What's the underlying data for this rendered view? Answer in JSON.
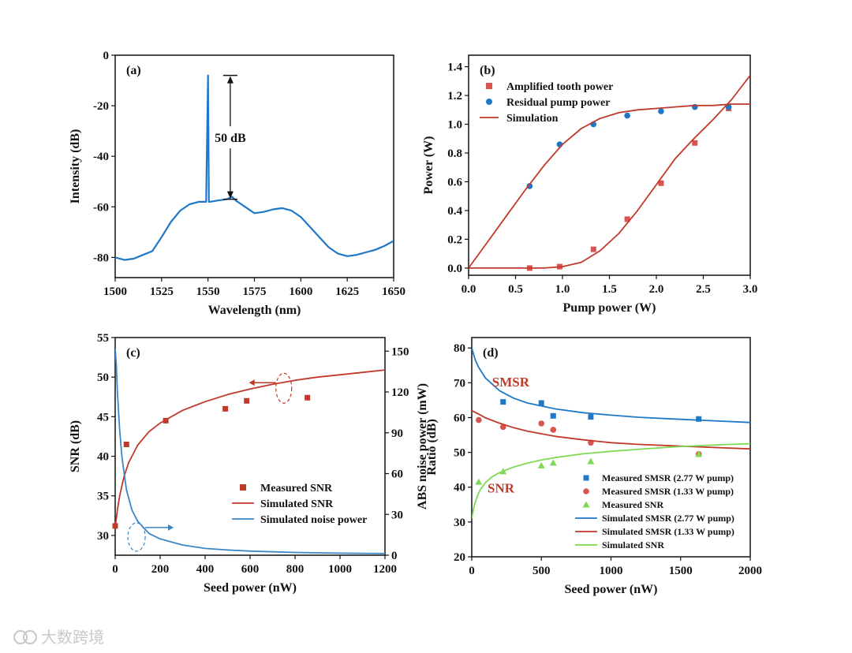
{
  "watermark": "大数跨境",
  "colors": {
    "blue": "#1f77c8",
    "red": "#c0392b",
    "green": "#7ed957",
    "axis": "#111111"
  },
  "chart_data": [
    {
      "panel": "(a)",
      "type": "line",
      "xlabel": "Wavelength (nm)",
      "ylabel": "Intensity (dB)",
      "xlim": [
        1500,
        1650
      ],
      "ylim": [
        -88,
        0
      ],
      "xticks": [
        1500,
        1525,
        1550,
        1575,
        1600,
        1625,
        1650
      ],
      "yticks": [
        0,
        -20,
        -40,
        -60,
        -80
      ],
      "series": [
        {
          "color": "#1f77c8",
          "x": [
            1500,
            1505,
            1510,
            1515,
            1520,
            1525,
            1530,
            1535,
            1540,
            1545,
            1549,
            1550,
            1550.5,
            1551,
            1555,
            1560,
            1563,
            1565,
            1570,
            1575,
            1580,
            1585,
            1590,
            1595,
            1600,
            1605,
            1610,
            1615,
            1620,
            1625,
            1630,
            1635,
            1640,
            1645,
            1650
          ],
          "y": [
            -80,
            -81,
            -80.5,
            -79,
            -77.5,
            -72,
            -66,
            -61.5,
            -59,
            -58,
            -58,
            -8,
            -58,
            -58,
            -57.5,
            -57,
            -56,
            -57.5,
            -60,
            -62.5,
            -62,
            -61,
            -60.5,
            -61.5,
            -64,
            -68,
            -72,
            -76,
            -78.5,
            -79.5,
            -79,
            -78,
            -77,
            -75.5,
            -73.5
          ]
        }
      ],
      "annotations": [
        {
          "text": "50 dB",
          "x": 1562,
          "y1": -8,
          "y2": -57
        }
      ]
    },
    {
      "panel": "(b)",
      "type": "scatter",
      "xlabel": "Pump power (W)",
      "ylabel": "Power (W)",
      "xlim": [
        0,
        3.0
      ],
      "ylim": [
        -0.05,
        1.48
      ],
      "xticks": [
        0.0,
        0.5,
        1.0,
        1.5,
        2.0,
        2.5,
        3.0
      ],
      "yticks": [
        0.0,
        0.2,
        0.4,
        0.6,
        0.8,
        1.0,
        1.2,
        1.4
      ],
      "legend": "top-left",
      "series": [
        {
          "name": "Amplified tooth power",
          "marker": "square",
          "color": "#d9534f",
          "x": [
            0.65,
            0.97,
            1.33,
            1.69,
            2.05,
            2.41,
            2.77
          ],
          "y": [
            0.0,
            0.01,
            0.13,
            0.34,
            0.59,
            0.87,
            1.11
          ]
        },
        {
          "name": "Residual pump power",
          "marker": "circle",
          "color": "#1f77c8",
          "x": [
            0.65,
            0.97,
            1.33,
            1.69,
            2.05,
            2.41,
            2.77
          ],
          "y": [
            0.57,
            0.86,
            1.0,
            1.06,
            1.09,
            1.12,
            1.12
          ]
        },
        {
          "name": "Simulation",
          "line": true,
          "color": "#c0392b",
          "x": [
            0,
            0.2,
            0.4,
            0.6,
            0.8,
            1.0,
            1.2,
            1.4,
            1.6,
            1.8,
            2.0,
            2.2,
            2.4,
            2.6,
            2.8,
            3.0
          ],
          "y": [
            0.0,
            0.0,
            0.0,
            0.0,
            0.0,
            0.01,
            0.04,
            0.12,
            0.24,
            0.4,
            0.58,
            0.76,
            0.9,
            1.03,
            1.17,
            1.34
          ]
        },
        {
          "line": true,
          "color": "#c0392b",
          "x": [
            0,
            0.2,
            0.4,
            0.6,
            0.8,
            1.0,
            1.2,
            1.4,
            1.6,
            1.8,
            2.0,
            2.2,
            2.4,
            2.6,
            2.8,
            3.0
          ],
          "y": [
            0.0,
            0.18,
            0.36,
            0.54,
            0.71,
            0.86,
            0.97,
            1.04,
            1.08,
            1.1,
            1.11,
            1.12,
            1.13,
            1.13,
            1.14,
            1.14
          ]
        }
      ]
    },
    {
      "panel": "(c)",
      "type": "line",
      "xlabel": "Seed power (nW)",
      "ylabel": "SNR (dB)",
      "y2label": "ABS noise power (mW)",
      "xlim": [
        0,
        1200
      ],
      "ylim": [
        27.5,
        55
      ],
      "y2lim": [
        0,
        160
      ],
      "xticks": [
        0,
        200,
        400,
        600,
        800,
        1000,
        1200
      ],
      "yticks": [
        30,
        35,
        40,
        45,
        50,
        55
      ],
      "y2ticks": [
        0,
        30,
        60,
        90,
        120,
        150
      ],
      "legend": "bottom-right",
      "series": [
        {
          "name": "Measured SNR",
          "marker": "square",
          "color": "#c0392b",
          "axis": "left",
          "x": [
            0,
            50,
            225,
            490,
            585,
            855
          ],
          "y": [
            31.2,
            41.5,
            44.5,
            46.0,
            47.0,
            47.4
          ]
        },
        {
          "name": "Simulated SNR",
          "line": true,
          "color": "#c0392b",
          "axis": "left",
          "x": [
            0,
            10,
            20,
            40,
            60,
            100,
            150,
            200,
            300,
            400,
            500,
            600,
            700,
            800,
            900,
            1000,
            1100,
            1200
          ],
          "y": [
            31.0,
            33.2,
            35.0,
            37.5,
            39.2,
            41.4,
            43.1,
            44.2,
            45.8,
            46.9,
            47.8,
            48.5,
            49.1,
            49.6,
            50.0,
            50.3,
            50.6,
            50.9
          ]
        },
        {
          "name": "Simulated noise power",
          "line": true,
          "color": "#3a87c8",
          "axis": "right",
          "x": [
            0,
            5,
            10,
            20,
            30,
            50,
            75,
            100,
            150,
            200,
            300,
            400,
            500,
            600,
            800,
            1000,
            1200
          ],
          "y": [
            152,
            140,
            120,
            92,
            72,
            48,
            33,
            25,
            16,
            12,
            7.5,
            5,
            3.8,
            3,
            2,
            1.5,
            1.2
          ]
        }
      ]
    },
    {
      "panel": "(d)",
      "type": "scatter",
      "xlabel": "Seed power (nW)",
      "ylabel": "Ratio (dB)",
      "xlim": [
        0,
        2000
      ],
      "ylim": [
        20,
        83
      ],
      "xticks": [
        0,
        500,
        1000,
        1500,
        2000
      ],
      "yticks": [
        20,
        30,
        40,
        50,
        60,
        70,
        80
      ],
      "legend": "bottom-right",
      "annotations": [
        {
          "text": "SMSR"
        },
        {
          "text": "SNR"
        }
      ],
      "series": [
        {
          "name": "Measured SMSR (2.77 W pump)",
          "marker": "square",
          "color": "#1f77c8",
          "x": [
            225,
            500,
            585,
            855,
            1630
          ],
          "y": [
            64.5,
            64.2,
            60.5,
            60.2,
            59.6
          ]
        },
        {
          "name": "Measured SMSR (1.33 W pump)",
          "marker": "circle",
          "color": "#d9534f",
          "x": [
            50,
            225,
            500,
            585,
            855,
            1630
          ],
          "y": [
            59.3,
            57.3,
            58.3,
            56.5,
            52.8,
            49.5
          ]
        },
        {
          "name": "Measured SNR",
          "marker": "triangle",
          "color": "#7ed957",
          "x": [
            50,
            225,
            500,
            585,
            855,
            1630
          ],
          "y": [
            41.5,
            44.5,
            46.2,
            47.0,
            47.4,
            49.5
          ]
        },
        {
          "name": "Simulated SMSR (2.77 W pump)",
          "line": true,
          "color": "#1f77c8",
          "x": [
            0,
            25,
            50,
            100,
            200,
            300,
            400,
            600,
            800,
            1000,
            1200,
            1500,
            2000
          ],
          "y": [
            80,
            76.6,
            74.4,
            71.3,
            67.7,
            65.6,
            64.2,
            62.5,
            61.4,
            60.7,
            60.1,
            59.5,
            58.6
          ]
        },
        {
          "name": "Simulated SMSR (1.33 W pump)",
          "line": true,
          "color": "#c0392b",
          "x": [
            0,
            50,
            100,
            200,
            300,
            400,
            600,
            800,
            1000,
            1200,
            1500,
            2000
          ],
          "y": [
            62,
            61,
            59.9,
            58.4,
            57.1,
            56.1,
            54.6,
            53.6,
            52.8,
            52.3,
            51.8,
            51.0
          ]
        },
        {
          "name": "Simulated SNR",
          "line": true,
          "color": "#7ed957",
          "x": [
            0,
            10,
            20,
            40,
            60,
            100,
            150,
            200,
            300,
            400,
            500,
            600,
            800,
            1000,
            1200,
            1500,
            1800,
            2000
          ],
          "y": [
            31,
            33.2,
            35,
            37.5,
            39.2,
            41.4,
            43.1,
            44.2,
            45.8,
            46.9,
            47.8,
            48.5,
            49.6,
            50.3,
            50.9,
            51.7,
            52.2,
            52.5
          ]
        }
      ]
    }
  ]
}
